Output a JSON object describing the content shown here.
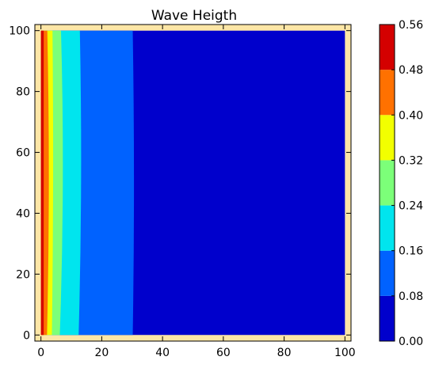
{
  "chart_data": {
    "type": "heatmap",
    "subtype": "filled-contour",
    "title": "Wave Heigth",
    "xlabel": "",
    "ylabel": "",
    "xlim": [
      -2,
      102
    ],
    "ylim": [
      -2,
      102
    ],
    "xticks": [
      0,
      20,
      40,
      60,
      80,
      100
    ],
    "yticks": [
      0,
      20,
      40,
      60,
      80,
      100
    ],
    "grid": false,
    "background_color": "#fde6a6",
    "levels": [
      0.0,
      0.08,
      0.16,
      0.24,
      0.32,
      0.4,
      0.48,
      0.56
    ],
    "level_colors": [
      "#0000cc",
      "#0062ff",
      "#00e5ee",
      "#7cff79",
      "#f2ff00",
      "#ff7100",
      "#d40000"
    ],
    "colorbar_ticks": [
      "0.00",
      "0.08",
      "0.16",
      "0.24",
      "0.32",
      "0.40",
      "0.48",
      "0.56"
    ],
    "bands": [
      {
        "level": "0.48-0.56",
        "x_from": 0.0,
        "x_to_bottom": 0.9,
        "x_to_mid": 0.9,
        "x_to_top": 0.9
      },
      {
        "level": "0.40-0.48",
        "x_from": 0.9,
        "x_to_bottom": 2.0,
        "x_to_mid": 2.6,
        "x_to_top": 2.1
      },
      {
        "level": "0.32-0.40",
        "x_from": 2.0,
        "x_to_bottom": 3.6,
        "x_to_mid": 4.0,
        "x_to_top": 3.8
      },
      {
        "level": "0.24-0.32",
        "x_from": 3.6,
        "x_to_bottom": 6.2,
        "x_to_mid": 7.2,
        "x_to_top": 6.6
      },
      {
        "level": "0.16-0.24",
        "x_from": 6.2,
        "x_to_bottom": 12.4,
        "x_to_mid": 13.2,
        "x_to_top": 12.8
      },
      {
        "level": "0.08-0.16",
        "x_from": 12.4,
        "x_to_bottom": 30.2,
        "x_to_mid": 30.6,
        "x_to_top": 30.2
      },
      {
        "level": "0.00-0.08",
        "x_from": 30.2,
        "x_to_bottom": 100,
        "x_to_mid": 100,
        "x_to_top": 100
      }
    ]
  }
}
